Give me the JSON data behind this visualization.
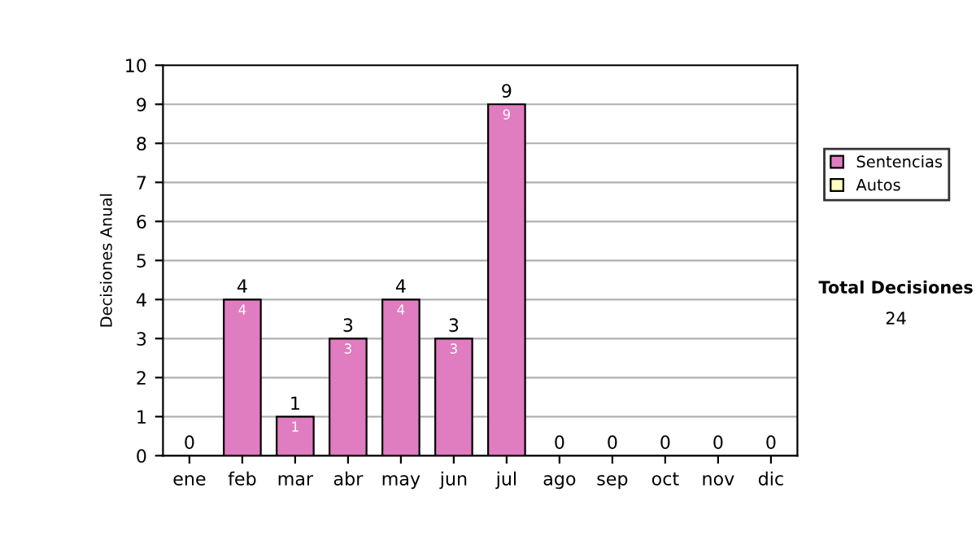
{
  "chart_data": {
    "type": "bar",
    "ylabel": "Decisiones Anual",
    "categories": [
      "ene",
      "feb",
      "mar",
      "abr",
      "may",
      "jun",
      "jul",
      "ago",
      "sep",
      "oct",
      "nov",
      "dic"
    ],
    "series": [
      {
        "name": "Sentencias",
        "color": "#e07cc0",
        "values": [
          0,
          4,
          1,
          3,
          4,
          3,
          9,
          0,
          0,
          0,
          0,
          0
        ],
        "value_labels": [
          null,
          "4",
          "1",
          "3",
          "4",
          "3",
          "9",
          null,
          null,
          null,
          null,
          null
        ]
      },
      {
        "name": "Autos",
        "color": "#ffffc0",
        "values": [
          0,
          0,
          0,
          0,
          0,
          0,
          0,
          0,
          0,
          0,
          0,
          0
        ]
      }
    ],
    "stacked": true,
    "totals": [
      "0",
      "4",
      "1",
      "3",
      "4",
      "3",
      "9",
      "0",
      "0",
      "0",
      "0",
      "0"
    ],
    "ylim": [
      0,
      10
    ],
    "yticks": [
      0,
      1,
      2,
      3,
      4,
      5,
      6,
      7,
      8,
      9,
      10
    ],
    "grid": "y",
    "legend": "right",
    "annotations": [
      "Total Decisiones",
      "24"
    ]
  }
}
